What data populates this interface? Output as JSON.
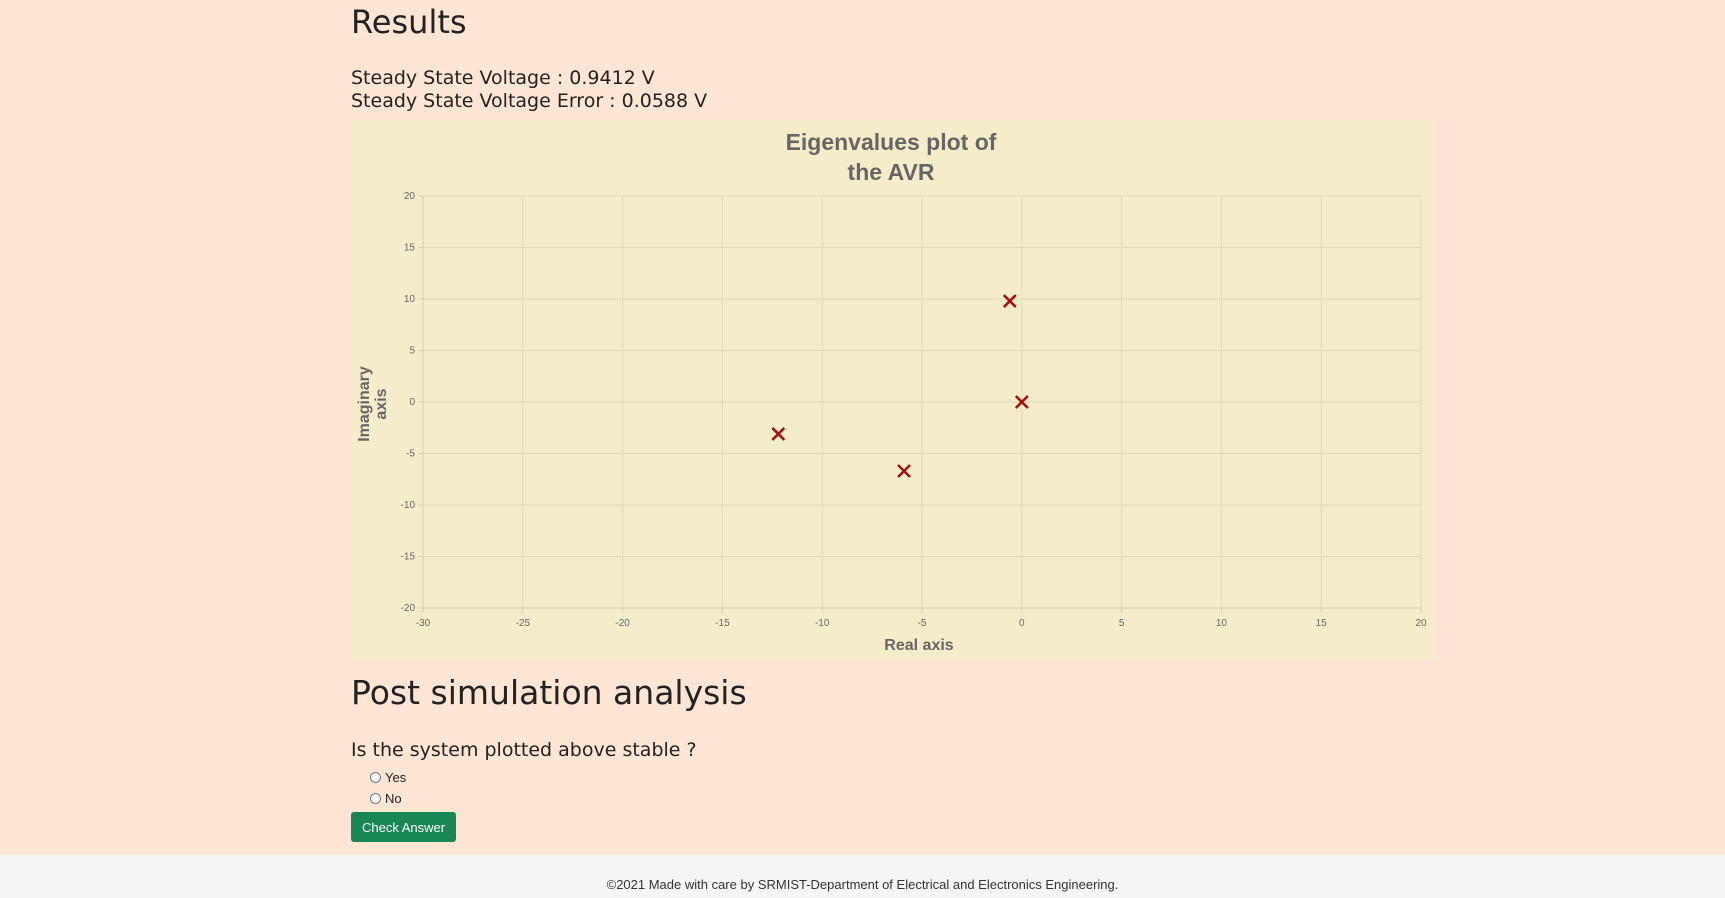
{
  "results": {
    "title": "Results",
    "steady_state_voltage": "Steady State Voltage : 0.9412 V",
    "steady_state_error": "Steady State Voltage Error : 0.0588 V"
  },
  "chart_data": {
    "type": "scatter",
    "title": [
      "Eigenvalues plot of",
      "the AVR"
    ],
    "xlabel": "Real axis",
    "ylabel": [
      "Imaginary",
      "axis"
    ],
    "xlim": [
      -30,
      20
    ],
    "ylim": [
      -20,
      20
    ],
    "xticks": [
      -30,
      -25,
      -20,
      -15,
      -10,
      -5,
      0,
      5,
      10,
      15,
      20
    ],
    "yticks": [
      20,
      15,
      10,
      5,
      0,
      -5,
      -10,
      -15,
      -20
    ],
    "grid": true,
    "marker": "x",
    "marker_color": "#a50f0f",
    "points": [
      {
        "x": -0.6,
        "y": 9.8
      },
      {
        "x": 0.0,
        "y": 0.0
      },
      {
        "x": -12.2,
        "y": -3.1
      },
      {
        "x": -5.9,
        "y": -6.7
      }
    ]
  },
  "analysis": {
    "title": "Post simulation analysis",
    "question": "Is the system plotted above stable ?",
    "options": [
      "Yes",
      "No"
    ],
    "check_button": "Check Answer"
  },
  "footer": {
    "text": "©2021 Made with care by SRMIST-Department of Electrical and Electronics Engineering."
  }
}
